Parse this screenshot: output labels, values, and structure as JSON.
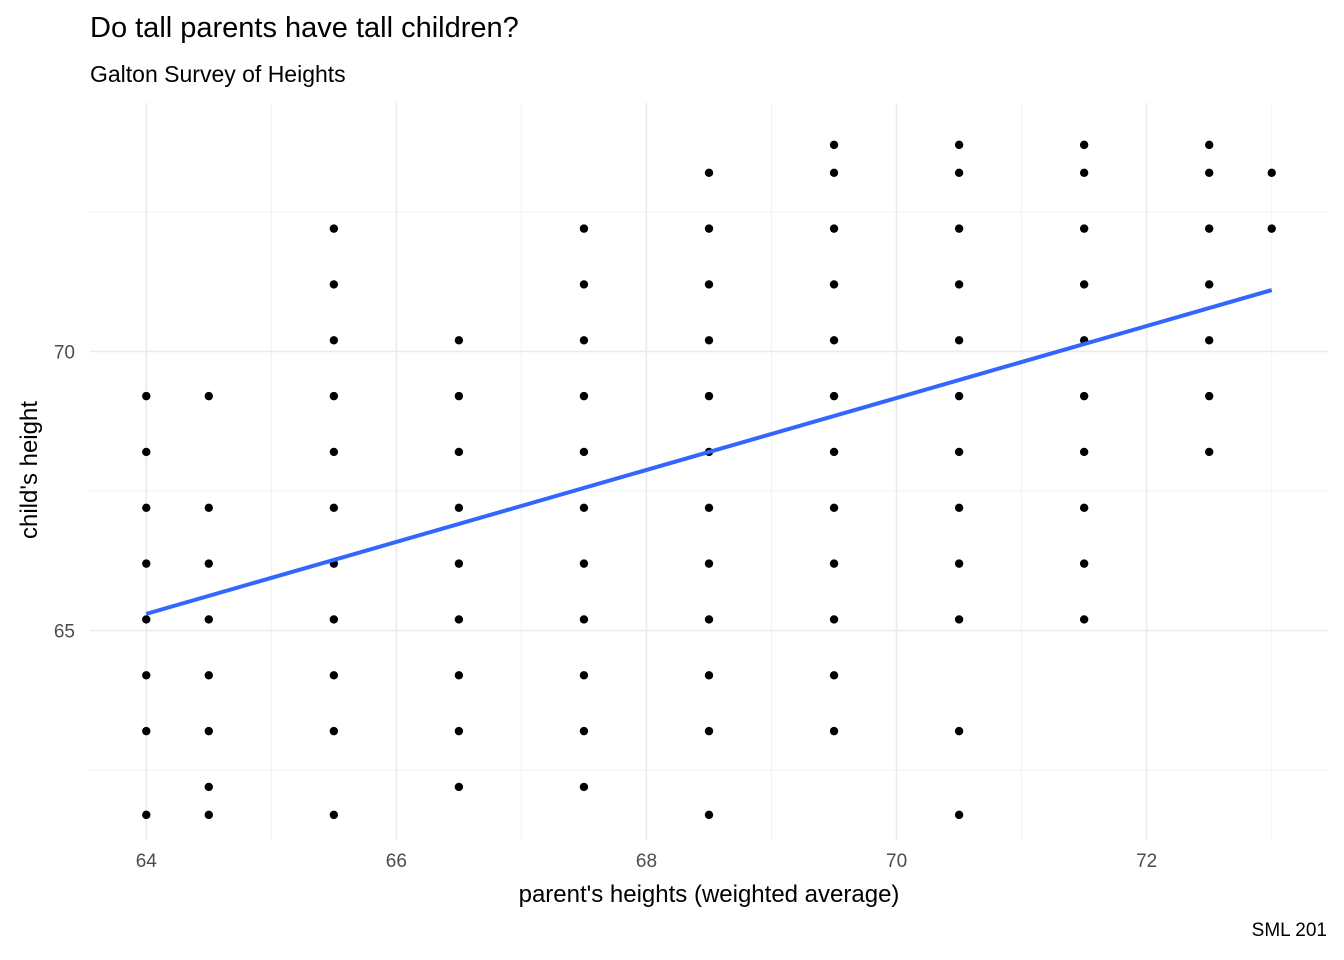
{
  "chart_data": {
    "type": "scatter",
    "title": "Do tall parents have tall children?",
    "subtitle": "Galton Survey of Heights",
    "caption": "SML 201",
    "xlabel": "parent's heights (weighted average)",
    "ylabel": "child's height",
    "xlim": [
      63.55,
      73.45
    ],
    "ylim": [
      61.25,
      74.45
    ],
    "x_ticks": [
      64,
      66,
      68,
      70,
      72
    ],
    "y_ticks": [
      65,
      70
    ],
    "grid": true,
    "points": [
      [
        64,
        69.2
      ],
      [
        64,
        68.2
      ],
      [
        64,
        67.2
      ],
      [
        64,
        66.2
      ],
      [
        64,
        65.2
      ],
      [
        64,
        64.2
      ],
      [
        64,
        63.2
      ],
      [
        64,
        61.7
      ],
      [
        64.5,
        69.2
      ],
      [
        64.5,
        67.2
      ],
      [
        64.5,
        66.2
      ],
      [
        64.5,
        65.2
      ],
      [
        64.5,
        64.2
      ],
      [
        64.5,
        63.2
      ],
      [
        64.5,
        62.2
      ],
      [
        64.5,
        61.7
      ],
      [
        65.5,
        72.2
      ],
      [
        65.5,
        71.2
      ],
      [
        65.5,
        70.2
      ],
      [
        65.5,
        69.2
      ],
      [
        65.5,
        68.2
      ],
      [
        65.5,
        67.2
      ],
      [
        65.5,
        66.2
      ],
      [
        65.5,
        65.2
      ],
      [
        65.5,
        64.2
      ],
      [
        65.5,
        63.2
      ],
      [
        65.5,
        61.7
      ],
      [
        66.5,
        70.2
      ],
      [
        66.5,
        69.2
      ],
      [
        66.5,
        68.2
      ],
      [
        66.5,
        67.2
      ],
      [
        66.5,
        66.2
      ],
      [
        66.5,
        65.2
      ],
      [
        66.5,
        64.2
      ],
      [
        66.5,
        63.2
      ],
      [
        66.5,
        62.2
      ],
      [
        67.5,
        72.2
      ],
      [
        67.5,
        71.2
      ],
      [
        67.5,
        70.2
      ],
      [
        67.5,
        69.2
      ],
      [
        67.5,
        68.2
      ],
      [
        67.5,
        67.2
      ],
      [
        67.5,
        66.2
      ],
      [
        67.5,
        65.2
      ],
      [
        67.5,
        64.2
      ],
      [
        67.5,
        63.2
      ],
      [
        67.5,
        62.2
      ],
      [
        68.5,
        73.2
      ],
      [
        68.5,
        72.2
      ],
      [
        68.5,
        71.2
      ],
      [
        68.5,
        70.2
      ],
      [
        68.5,
        69.2
      ],
      [
        68.5,
        68.2
      ],
      [
        68.5,
        67.2
      ],
      [
        68.5,
        66.2
      ],
      [
        68.5,
        65.2
      ],
      [
        68.5,
        64.2
      ],
      [
        68.5,
        63.2
      ],
      [
        68.5,
        61.7
      ],
      [
        69.5,
        73.7
      ],
      [
        69.5,
        73.2
      ],
      [
        69.5,
        72.2
      ],
      [
        69.5,
        71.2
      ],
      [
        69.5,
        70.2
      ],
      [
        69.5,
        69.2
      ],
      [
        69.5,
        68.2
      ],
      [
        69.5,
        67.2
      ],
      [
        69.5,
        66.2
      ],
      [
        69.5,
        65.2
      ],
      [
        69.5,
        64.2
      ],
      [
        69.5,
        63.2
      ],
      [
        70.5,
        73.7
      ],
      [
        70.5,
        73.2
      ],
      [
        70.5,
        72.2
      ],
      [
        70.5,
        71.2
      ],
      [
        70.5,
        70.2
      ],
      [
        70.5,
        69.2
      ],
      [
        70.5,
        68.2
      ],
      [
        70.5,
        67.2
      ],
      [
        70.5,
        66.2
      ],
      [
        70.5,
        65.2
      ],
      [
        70.5,
        63.2
      ],
      [
        70.5,
        61.7
      ],
      [
        71.5,
        73.7
      ],
      [
        71.5,
        73.2
      ],
      [
        71.5,
        72.2
      ],
      [
        71.5,
        71.2
      ],
      [
        71.5,
        70.2
      ],
      [
        71.5,
        69.2
      ],
      [
        71.5,
        68.2
      ],
      [
        71.5,
        67.2
      ],
      [
        71.5,
        66.2
      ],
      [
        71.5,
        65.2
      ],
      [
        72.5,
        73.7
      ],
      [
        72.5,
        73.2
      ],
      [
        72.5,
        72.2
      ],
      [
        72.5,
        71.2
      ],
      [
        72.5,
        70.2
      ],
      [
        72.5,
        69.2
      ],
      [
        72.5,
        68.2
      ],
      [
        73,
        73.2
      ],
      [
        73,
        72.2
      ]
    ],
    "trend_line": {
      "method": "linear fit",
      "color": "#3366FF",
      "points": [
        [
          64,
          65.3
        ],
        [
          73,
          71.1
        ]
      ]
    },
    "point_color": "#000000"
  }
}
